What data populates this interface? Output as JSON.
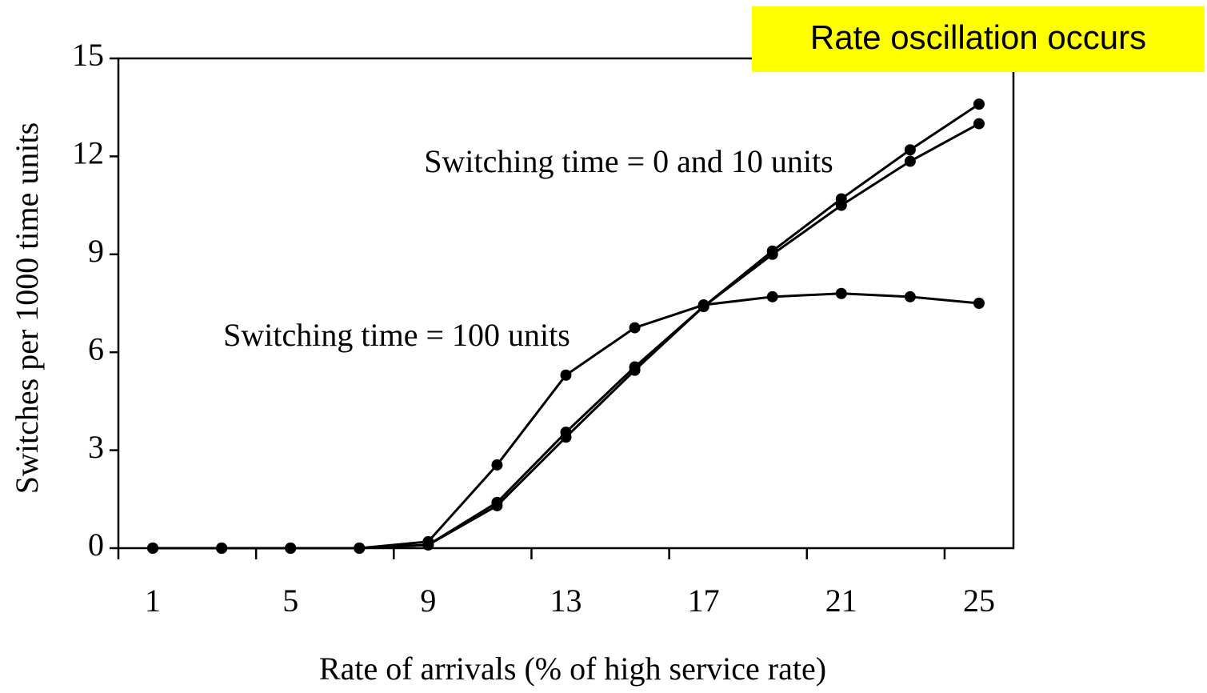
{
  "chart_data": {
    "type": "line",
    "xlabel": "Rate of arrivals (% of high service rate)",
    "ylabel": "Switches per 1000 time units",
    "categories": [
      "1",
      null,
      "5",
      null,
      "9",
      null,
      "13",
      null,
      "17",
      null,
      "21",
      null,
      "25"
    ],
    "series": [
      {
        "color": "#000000",
        "values": [
          0,
          0,
          0,
          0,
          0.2,
          2.55,
          5.3,
          6.75,
          7.45,
          7.7,
          7.8,
          7.7,
          7.5
        ]
      },
      {
        "color": "#000000",
        "values": [
          0,
          0,
          0,
          0,
          0.1,
          1.4,
          3.55,
          5.55,
          7.4,
          9.1,
          10.7,
          12.2,
          13.6
        ]
      },
      {
        "color": "#000000",
        "values": [
          0,
          0,
          0,
          0,
          0.1,
          1.3,
          3.4,
          5.45,
          7.4,
          9.0,
          10.5,
          11.85,
          13.0
        ]
      }
    ],
    "ylim": [
      0,
      15
    ],
    "yticks": [
      0,
      3,
      6,
      9,
      12,
      15
    ],
    "annotations": [
      "Switching time = 0 and 10 units",
      "Switching time = 100 units"
    ],
    "callout": "Rate oscillation occurs"
  }
}
